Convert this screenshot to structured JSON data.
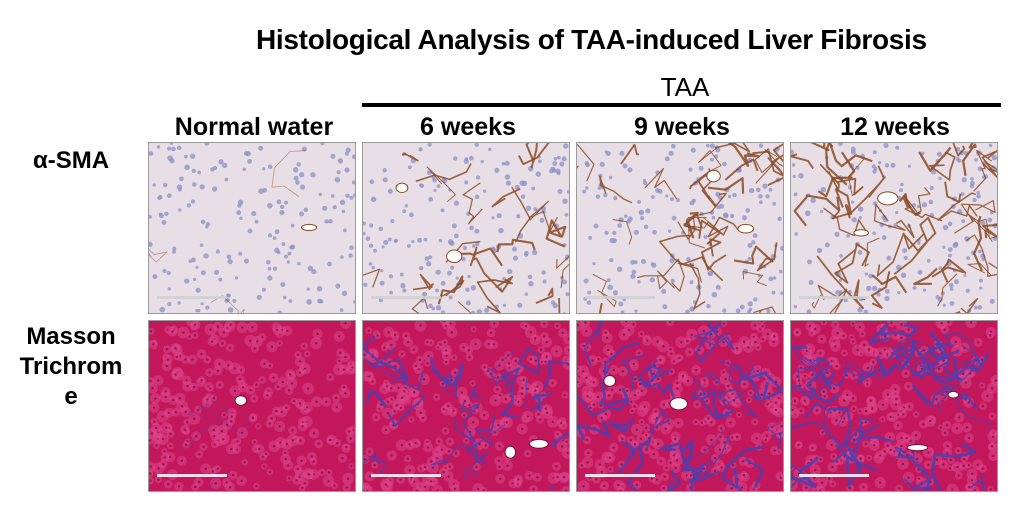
{
  "figure": {
    "title": "Histological Analysis of TAA-induced Liver Fibrosis",
    "group_label": "TAA",
    "columns": [
      "Normal water",
      "6 weeks",
      "9 weeks",
      "12 weeks"
    ],
    "rows": [
      {
        "label_lines": [
          "α-SMA"
        ],
        "stain": "ihc"
      },
      {
        "label_lines": [
          "Masson",
          "Trichrom",
          "e"
        ],
        "stain": "masson"
      }
    ],
    "colors": {
      "ihc_background": "#e8dfe6",
      "ihc_nuclei": "#8e8fc6",
      "ihc_signal": "#8a4a22",
      "masson_background": "#c2185b",
      "masson_cells": "#e0458a",
      "masson_collagen": "#4b3fb0"
    }
  }
}
